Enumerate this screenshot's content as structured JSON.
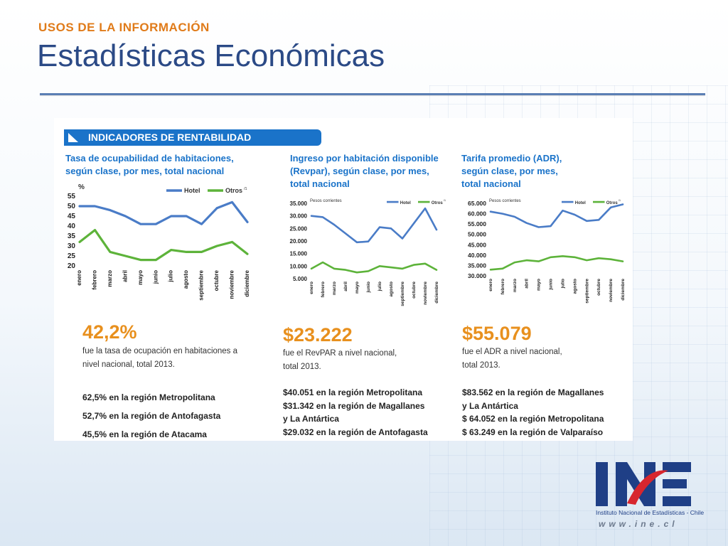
{
  "header": {
    "eyebrow": "USOS DE LA INFORMACIÓN",
    "title": "Estadísticas Económicas"
  },
  "banner": {
    "label": "INDICADORES DE RENTABILIDAD"
  },
  "months": [
    "enero",
    "febrero",
    "marzo",
    "abril",
    "mayo",
    "junio",
    "julio",
    "agosto",
    "septiembre",
    "octubre",
    "noviembre",
    "diciembre"
  ],
  "colors": {
    "hotel": "#4a7cc7",
    "otros": "#5db33a",
    "accent": "#e8901e",
    "banner": "#1a73c9"
  },
  "chart_data": [
    {
      "type": "line",
      "title_lines": [
        "Tasa de ocupabilidad de habitaciones,",
        "según clase, por mes, total nacional"
      ],
      "ylabel": "%",
      "ylim": [
        20,
        55
      ],
      "yticks": [
        55,
        50,
        45,
        40,
        35,
        30,
        25,
        20
      ],
      "categories": [
        "enero",
        "febrero",
        "marzo",
        "abril",
        "mayo",
        "junio",
        "julio",
        "agosto",
        "septiembre",
        "octubre",
        "noviembre",
        "diciembre"
      ],
      "series": [
        {
          "name": "Hotel",
          "values": [
            50,
            50,
            48,
            45,
            41,
            41,
            45,
            45,
            41,
            49,
            52,
            42
          ]
        },
        {
          "name": "Otros",
          "sup": "/1",
          "values": [
            32,
            38,
            27,
            25,
            23,
            23,
            28,
            27,
            27,
            30,
            32,
            26
          ]
        }
      ]
    },
    {
      "type": "line",
      "title_lines": [
        "Ingreso por habitación disponible",
        "(Revpar), según clase, por mes,",
        "total nacional"
      ],
      "ylabel": "Pesos corrientes",
      "ylim": [
        5000,
        35000
      ],
      "yticks": [
        "35.000",
        "30.000",
        "25.000",
        "20.000",
        "15.000",
        "10.000",
        "5.000"
      ],
      "categories": [
        "enero",
        "febrero",
        "marzo",
        "abril",
        "mayo",
        "junio",
        "julio",
        "agosto",
        "septiembre",
        "octubre",
        "noviembre",
        "diciembre"
      ],
      "series": [
        {
          "name": "Hotel",
          "values": [
            30000,
            29500,
            26500,
            23000,
            19500,
            19800,
            25500,
            25000,
            21000,
            27000,
            33000,
            24500
          ]
        },
        {
          "name": "Otros",
          "sup": "/1",
          "values": [
            9000,
            11500,
            9000,
            8500,
            7500,
            8000,
            10000,
            9500,
            9000,
            10500,
            11000,
            8500
          ]
        }
      ]
    },
    {
      "type": "line",
      "title_lines": [
        "Tarifa promedio (ADR),",
        "según clase, por mes,",
        "total nacional"
      ],
      "ylabel": "Pesos corrientes",
      "ylim": [
        30000,
        65000
      ],
      "yticks": [
        "65.000",
        "60.000",
        "55.000",
        "50.000",
        "45.000",
        "40.000",
        "35.000",
        "30.000"
      ],
      "categories": [
        "enero",
        "febrero",
        "marzo",
        "abril",
        "mayo",
        "junio",
        "julio",
        "agosto",
        "septiembre",
        "octubre",
        "noviembre",
        "diciembre"
      ],
      "series": [
        {
          "name": "Hotel",
          "values": [
            61000,
            60000,
            58500,
            55500,
            53500,
            54000,
            61500,
            59500,
            56500,
            57000,
            63000,
            64500
          ]
        },
        {
          "name": "Otros",
          "sup": "/1",
          "values": [
            33000,
            33500,
            36500,
            37500,
            37000,
            39000,
            39500,
            39000,
            37500,
            38500,
            38000,
            37000
          ]
        }
      ]
    }
  ],
  "stats": [
    {
      "value": "42,2%",
      "desc_lines": [
        "fue la tasa de ocupación en habitaciones a",
        "nivel nacional, total 2013."
      ],
      "regions": [
        "62,5% en la región Metropolitana",
        "52,7% en la región de Antofagasta",
        "45,5% en la región de Atacama"
      ]
    },
    {
      "value": "$23.222",
      "desc_lines": [
        "fue el  RevPAR a nivel nacional,",
        "total 2013."
      ],
      "regions": [
        "$40.051 en la región Metropolitana",
        "$31.342 en la región de Magallanes",
        "y La Antártica",
        "$29.032 en la región de Antofagasta"
      ]
    },
    {
      "value": "$55.079",
      "desc_lines": [
        "fue el ADR a nivel nacional,",
        "total 2013."
      ],
      "regions": [
        "$83.562 en la región de Magallanes",
        "y La Antártica",
        "$ 64.052 en la región Metropolitana",
        "$ 63.249 en la región de Valparaíso"
      ]
    }
  ],
  "logo": {
    "letters": "INE",
    "institution": "Instituto Nacional de Estadísticas - Chile",
    "website": "www.ine.cl",
    "colors": {
      "blue": "#1f3f86",
      "red": "#d7262e"
    }
  }
}
